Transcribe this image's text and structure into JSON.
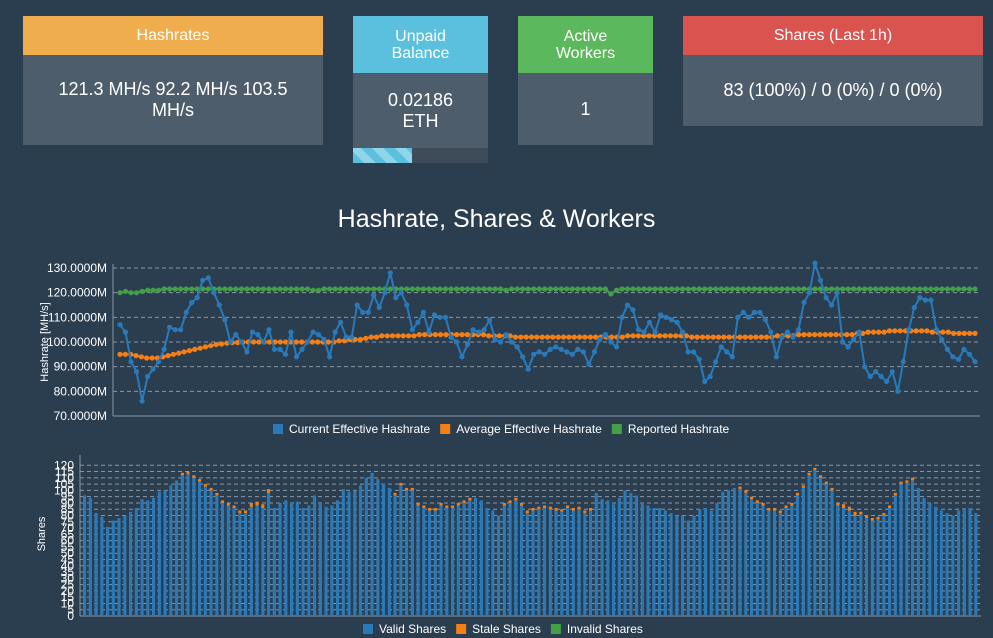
{
  "cards": {
    "hashrates": {
      "title": "Hashrates",
      "value": "121.3 MH/s  92.2 MH/s   103.5 MH/s",
      "color": "#f0ad4e"
    },
    "unpaid": {
      "title": "Unpaid Balance",
      "value": "0.02186 ETH",
      "progress": 0.44,
      "color": "#5bc0de"
    },
    "workers": {
      "title": "Active Workers",
      "value": "1",
      "color": "#5cb85c"
    },
    "shares": {
      "title": "Shares (Last 1h)",
      "value": "83 (100%) / 0 (0%) / 0 (0%)",
      "color": "#d9534f"
    }
  },
  "chart_title": "Hashrate, Shares & Workers",
  "chart_data": [
    {
      "type": "line",
      "ylabel": "Hashrate [MH/s]",
      "ylim": [
        70,
        130
      ],
      "y_ticks": [
        "70.0000M",
        "80.0000M",
        "90.0000M",
        "100.0000M",
        "110.0000M",
        "120.0000M",
        "130.0000M"
      ],
      "grid": true,
      "legend_position": "bottom",
      "series": [
        {
          "name": "Current Effective Hashrate",
          "color": "#2a7ab9",
          "values": [
            107,
            104,
            92,
            88,
            76,
            86,
            89,
            92,
            97,
            106,
            105,
            105,
            112,
            116,
            118,
            125,
            126,
            120,
            115,
            109,
            100,
            103,
            100,
            96,
            104,
            103,
            100,
            105,
            97,
            97,
            95,
            104,
            94,
            97,
            100,
            104,
            103,
            101,
            94,
            104,
            108,
            102,
            102,
            115,
            112,
            112,
            119,
            114,
            120,
            128,
            118,
            120,
            115,
            105,
            108,
            112,
            104,
            111,
            110,
            110,
            102,
            100,
            94,
            99,
            105,
            104,
            105,
            109,
            101,
            100,
            103,
            100,
            98,
            94,
            89,
            95,
            96,
            95,
            97,
            98,
            97,
            96,
            95,
            97,
            96,
            91,
            96,
            101,
            103,
            100,
            98,
            110,
            115,
            113,
            105,
            104,
            108,
            104,
            111,
            110,
            109,
            108,
            104,
            96,
            96,
            93,
            84,
            86,
            92,
            98,
            96,
            94,
            110,
            112,
            110,
            112,
            112,
            109,
            104,
            94,
            102,
            104,
            102,
            105,
            116,
            120,
            132,
            125,
            118,
            115,
            120,
            100,
            98,
            101,
            104,
            90,
            86,
            88,
            86,
            84,
            88,
            80,
            92,
            105,
            114,
            118,
            117,
            117,
            105,
            101,
            97,
            94,
            93,
            97,
            95,
            92
          ]
        },
        {
          "name": "Average Effective Hashrate",
          "color": "#f57f17",
          "values": [
            95,
            95,
            95,
            94.5,
            94,
            93.5,
            93.5,
            93.5,
            94,
            94.5,
            95,
            95.5,
            96,
            96.5,
            97,
            97.5,
            98,
            98.5,
            99,
            99.2,
            99.5,
            99.7,
            99.8,
            99.9,
            100,
            100,
            100,
            100,
            100,
            100,
            100,
            100,
            100,
            100,
            100,
            100,
            100,
            100,
            100,
            100,
            100,
            100.5,
            100.5,
            101,
            101,
            101,
            101.5,
            102,
            102,
            102.5,
            102.5,
            102.5,
            102.5,
            102.5,
            102.5,
            102.5,
            103,
            103,
            103,
            103,
            103,
            103,
            103,
            103,
            103,
            103,
            103,
            103,
            103,
            102.5,
            102.5,
            102.5,
            102.5,
            102.5,
            102,
            102,
            102,
            102,
            102,
            102,
            102,
            102,
            102,
            102,
            102,
            102,
            102,
            102,
            102,
            102,
            102,
            102,
            102,
            102,
            102,
            102.5,
            102.5,
            102.5,
            102.5,
            102.5,
            102.5,
            102.5,
            102.5,
            102.5,
            102.5,
            102.5,
            102.5,
            102,
            102,
            102,
            102,
            102,
            102,
            102,
            102,
            102,
            102,
            102,
            102,
            102,
            102,
            102,
            102,
            102.5,
            102.5,
            102.5,
            102.5,
            103,
            103,
            103,
            103,
            103,
            103,
            103,
            103,
            103,
            103,
            103,
            103.5,
            103.5,
            104,
            104,
            104,
            104,
            104.5,
            104.5,
            104.5,
            104.5,
            104.5,
            104.5,
            104.5,
            104.5,
            104,
            104,
            104,
            104,
            103.5,
            103.5,
            103.5,
            103.5,
            103.5
          ]
        },
        {
          "name": "Reported Hashrate",
          "color": "#43a047",
          "values": [
            120,
            120.5,
            120,
            120,
            120.5,
            121,
            121,
            121,
            121.5,
            121.5,
            121.5,
            121.5,
            121.5,
            121.5,
            121.5,
            121.5,
            121.5,
            121.5,
            121.5,
            121.5,
            121.5,
            121.5,
            121.5,
            121.5,
            121.5,
            121.5,
            121.5,
            121.5,
            121.5,
            121.5,
            121.5,
            121.5,
            121.5,
            121.5,
            121.5,
            121,
            121,
            121.5,
            121.5,
            121.5,
            121.5,
            121.5,
            121.5,
            121.5,
            121.5,
            121.5,
            121.5,
            121.5,
            121.5,
            121.5,
            121.5,
            121.5,
            121.5,
            121.5,
            121.5,
            121.5,
            121.5,
            121.5,
            121.5,
            121.5,
            121.5,
            121.5,
            121.5,
            121.5,
            121.5,
            121.5,
            121.5,
            121.5,
            121.5,
            121.5,
            121,
            121.5,
            121.5,
            121.5,
            121.5,
            121.5,
            121.5,
            121.5,
            121.5,
            121.5,
            121.5,
            121.5,
            121.5,
            121.5,
            121.5,
            121.5,
            121.5,
            121.5,
            121.5,
            119.5,
            121,
            121.5,
            121.5,
            121.5,
            121.5,
            121.5,
            121.5,
            121.5,
            121.5,
            121.5,
            121.5,
            121.5,
            121.5,
            121.5,
            121.5,
            121.5,
            121.5,
            121.5,
            121.5,
            121.5,
            121.5,
            121.5,
            121.5,
            121.5,
            121.5,
            121.5,
            121.5,
            121.5,
            121.5,
            121.5,
            121.5,
            121.5,
            121.5,
            121.5,
            121.5,
            121.5,
            121.5,
            121.5,
            121.5,
            121.5,
            121.5,
            121.5,
            121.5,
            121.5,
            121.5,
            121.5,
            121.5,
            121.5,
            121.5,
            121.5,
            121.5,
            121.5,
            121.5,
            121.5,
            121.5,
            121.5,
            121.5,
            121.5,
            121.5,
            121.5,
            121.5,
            121.5,
            121.5,
            121.5,
            121.5,
            121.5
          ]
        }
      ]
    },
    {
      "type": "bar",
      "ylabel": "Shares",
      "ylim": [
        0,
        125
      ],
      "y_ticks": [
        "0",
        "5",
        "10",
        "15",
        "20",
        "25",
        "30",
        "35",
        "40",
        "45",
        "50",
        "55",
        "60",
        "65",
        "70",
        "75",
        "80",
        "85",
        "90",
        "95",
        "100",
        "105",
        "110",
        "115",
        "120"
      ],
      "grid": true,
      "legend_position": "bottom",
      "series": [
        {
          "name": "Valid Shares",
          "color": "#2a7ab9",
          "values": [
            96,
            94,
            82,
            79,
            71,
            76,
            78,
            80,
            83,
            86,
            93,
            92,
            94,
            99,
            100,
            104,
            108,
            112,
            113,
            110,
            107,
            103,
            100,
            96,
            90,
            88,
            86,
            82,
            82,
            87,
            88,
            86,
            98,
            86,
            90,
            92,
            90,
            91,
            86,
            88,
            96,
            90,
            87,
            88,
            92,
            101,
            99,
            100,
            104,
            110,
            114,
            109,
            105,
            102,
            96,
            104,
            100,
            100,
            88,
            86,
            84,
            84,
            88,
            86,
            86,
            88,
            90,
            92,
            94,
            92,
            86,
            84,
            80,
            88,
            90,
            92,
            88,
            82,
            84,
            85,
            86,
            85,
            84,
            83,
            86,
            84,
            85,
            82,
            84,
            98,
            93,
            92,
            89,
            94,
            100,
            98,
            96,
            90,
            88,
            86,
            86,
            84,
            82,
            80,
            80,
            76,
            80,
            85,
            86,
            84,
            90,
            99,
            100,
            102,
            101,
            98,
            93,
            90,
            88,
            84,
            84,
            82,
            86,
            88,
            96,
            102,
            112,
            116,
            110,
            105,
            100,
            88,
            86,
            84,
            80,
            81,
            78,
            76,
            77,
            80,
            86,
            96,
            105,
            106,
            108,
            102,
            94,
            90,
            87,
            84,
            82,
            80,
            84,
            86,
            86,
            82
          ]
        },
        {
          "name": "Stale Shares",
          "color": "#f57f17",
          "values": [
            0,
            0,
            0,
            0,
            0,
            0,
            0,
            0,
            0,
            0,
            0,
            0,
            0,
            0,
            0,
            0,
            0,
            2,
            2,
            2,
            2,
            2,
            2,
            2,
            2,
            2,
            2,
            2,
            2,
            3,
            3,
            3,
            3,
            0,
            0,
            0,
            0,
            0,
            0,
            0,
            0,
            0,
            0,
            0,
            0,
            0,
            0,
            0,
            0,
            0,
            0,
            0,
            0,
            0,
            2,
            2,
            2,
            2,
            2,
            2,
            2,
            2,
            2,
            2,
            2,
            2,
            2,
            2,
            0,
            0,
            0,
            0,
            0,
            2,
            2,
            2,
            2,
            2,
            2,
            2,
            2,
            2,
            2,
            2,
            2,
            2,
            2,
            2,
            2,
            0,
            0,
            0,
            0,
            0,
            0,
            0,
            0,
            0,
            0,
            0,
            0,
            0,
            0,
            0,
            0,
            0,
            0,
            0,
            0,
            0,
            0,
            0,
            0,
            0,
            2,
            2,
            2,
            2,
            2,
            2,
            2,
            2,
            2,
            2,
            2,
            2,
            2,
            2,
            2,
            2,
            2,
            2,
            3,
            3,
            3,
            2,
            2,
            2,
            2,
            2,
            2,
            2,
            2,
            2,
            2,
            0,
            0,
            0,
            0,
            0,
            0,
            0,
            0,
            0,
            0,
            0,
            0,
            0,
            0,
            0
          ]
        },
        {
          "name": "Invalid Shares",
          "color": "#43a047",
          "values": [
            0,
            0,
            0,
            0,
            0,
            0,
            0,
            0,
            0,
            0,
            0,
            0,
            0,
            0,
            0,
            0,
            0,
            0,
            0,
            0,
            0,
            0,
            0,
            0,
            0,
            0,
            0,
            0,
            0,
            0,
            0,
            0,
            0,
            0,
            0,
            0,
            0,
            0,
            0,
            0,
            0,
            0,
            0,
            0,
            0,
            0,
            0,
            0,
            0,
            0,
            0,
            0,
            0,
            0,
            0,
            0,
            0,
            0,
            0,
            0,
            0,
            0,
            0,
            0,
            0,
            0,
            0,
            0,
            0,
            0,
            0,
            0,
            0,
            0,
            0,
            0,
            0,
            0,
            0,
            0,
            0,
            0,
            0,
            0,
            0,
            0,
            0,
            0,
            0,
            0,
            0,
            0,
            0,
            0,
            0,
            0,
            0,
            0,
            0,
            0,
            0,
            0,
            0,
            0,
            0,
            0,
            0,
            0,
            0,
            0,
            0,
            0,
            0,
            0,
            0,
            0,
            0,
            0,
            0,
            0,
            0,
            0,
            0,
            0,
            0,
            0,
            0,
            0,
            0,
            0,
            0,
            0,
            0,
            0,
            0,
            0,
            0,
            0,
            0,
            0,
            0,
            0,
            0,
            0,
            0,
            0,
            0,
            0,
            0,
            0,
            0,
            0,
            0,
            0,
            0,
            0,
            0,
            0
          ]
        }
      ]
    }
  ]
}
